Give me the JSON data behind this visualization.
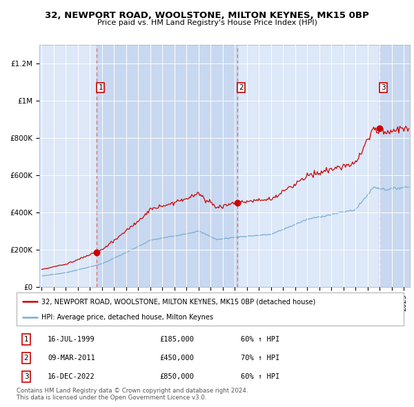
{
  "title": "32, NEWPORT ROAD, WOOLSTONE, MILTON KEYNES, MK15 0BP",
  "subtitle": "Price paid vs. HM Land Registry's House Price Index (HPI)",
  "red_label": "32, NEWPORT ROAD, WOOLSTONE, MILTON KEYNES, MK15 0BP (detached house)",
  "blue_label": "HPI: Average price, detached house, Milton Keynes",
  "sale_points": [
    {
      "label": "1",
      "date": 1999.54,
      "price": 185000,
      "note": "16-JUL-1999",
      "pct": "60% ↑ HPI"
    },
    {
      "label": "2",
      "date": 2011.19,
      "price": 450000,
      "note": "09-MAR-2011",
      "pct": "70% ↑ HPI"
    },
    {
      "label": "3",
      "date": 2022.96,
      "price": 850000,
      "note": "16-DEC-2022",
      "pct": "60% ↑ HPI"
    }
  ],
  "copyright_text": "Contains HM Land Registry data © Crown copyright and database right 2024.\nThis data is licensed under the Open Government Licence v3.0.",
  "ylim": [
    0,
    1300000
  ],
  "xlim": [
    1994.8,
    2025.5
  ],
  "background_color": "#f0f0f0",
  "plot_bg_color": "#dde8f8",
  "red_color": "#cc0000",
  "blue_color": "#7aadd4",
  "dashed_color": "#dd6666",
  "shaded_color": "#c8d8f0",
  "grid_color": "#ffffff",
  "sale_prices": [
    185000,
    450000,
    850000
  ]
}
